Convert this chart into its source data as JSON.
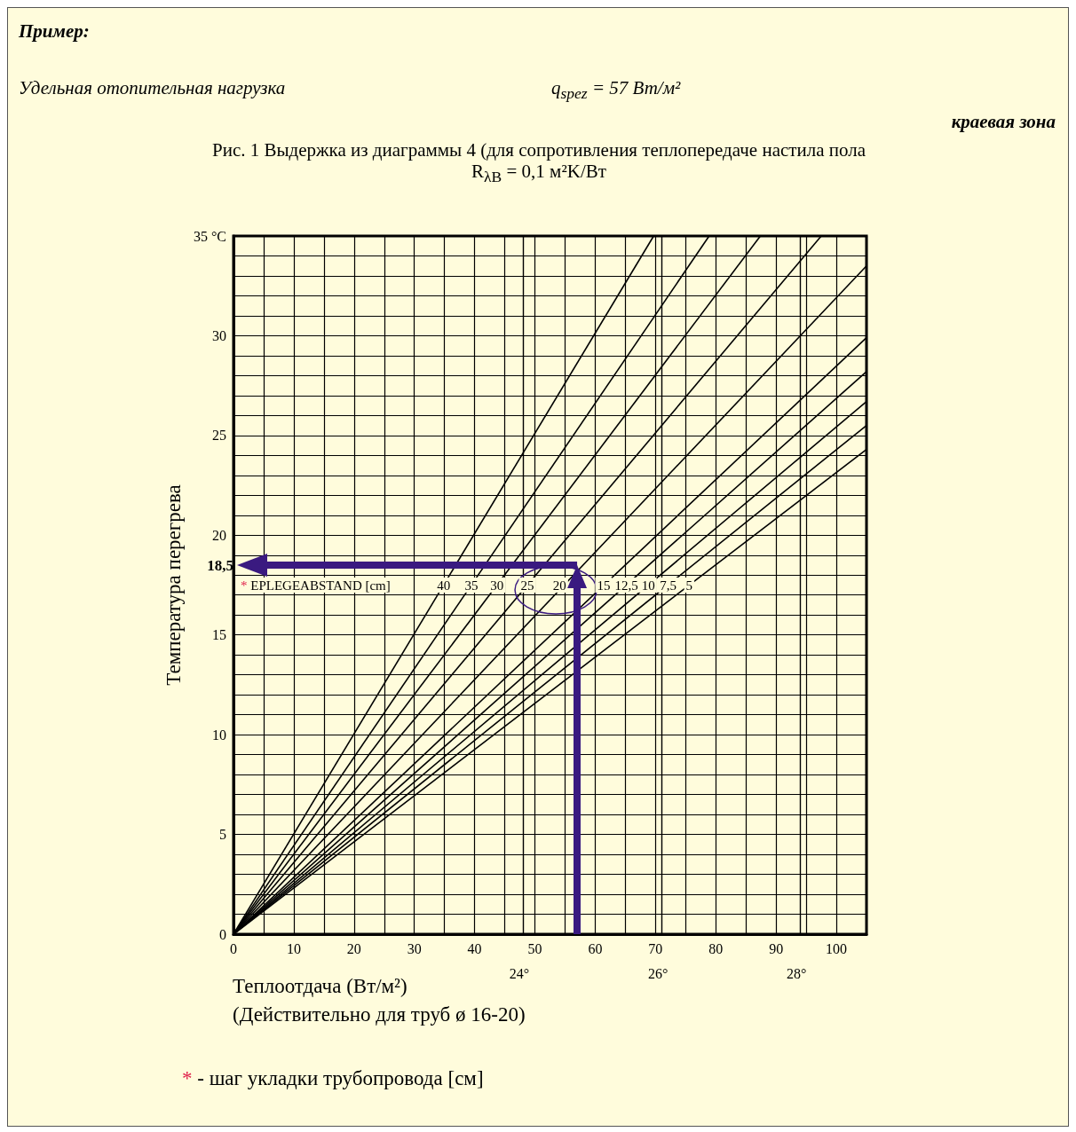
{
  "chart_data": {
    "type": "line",
    "title": "Рис. 1 Выдержка из диаграммы 4 (для сопротивления теплопередаче настила пола\nR$_{λB}$ = 0,1 м²K/Вт",
    "xlabel": "Теплоотдача (Вт/м²)",
    "ylabel": "Температура перегрева",
    "annotations": [
      "Пример:",
      "Удельная отопительная нагрузка",
      "q$_{spez}$ = 57 Вт/м²",
      "краевая зона",
      "(Действительно для труб ø 16-20)",
      "* - шаг укладки трубопровода [см]",
      "24°",
      "26°",
      "28°",
      "* EPLEGEABSTAND [cm]",
      {
        "text": "40",
        "x": 34.85,
        "y": 17.5
      },
      {
        "text": "35",
        "x": 39.45,
        "y": 17.5
      },
      {
        "text": "30",
        "x": 43.7,
        "y": 17.5
      },
      {
        "text": "25",
        "x": 48.75,
        "y": 17.5
      },
      {
        "text": "20",
        "x": 54.1,
        "y": 17.5
      },
      {
        "text": "15",
        "x": 61.4,
        "y": 17.5
      },
      {
        "text": "12,5",
        "x": 65.2,
        "y": 17.5
      },
      {
        "text": "10",
        "x": 68.8,
        "y": 17.5
      },
      {
        "text": "7,5",
        "x": 72.1,
        "y": 17.5
      },
      {
        "text": "5",
        "x": 75.6,
        "y": 17.5
      }
    ],
    "series": [
      {
        "color": "#000000",
        "x": [
          0,
          69.7
        ],
        "values": [
          0,
          35
        ]
      },
      {
        "color": "#000000",
        "x": [
          0,
          78.9
        ],
        "values": [
          0,
          35
        ]
      },
      {
        "color": "#000000",
        "x": [
          0,
          87.4
        ],
        "values": [
          0,
          35
        ]
      },
      {
        "color": "#000000",
        "x": [
          0,
          97.5
        ],
        "values": [
          0,
          35
        ]
      },
      {
        "color": "#000000",
        "x": [
          0,
          105
        ],
        "values": [
          0,
          33.5
        ]
      },
      {
        "color": "#000000",
        "x": [
          0,
          105
        ],
        "values": [
          0,
          29.9
        ]
      },
      {
        "color": "#000000",
        "x": [
          0,
          105
        ],
        "values": [
          0,
          28.2
        ]
      },
      {
        "color": "#000000",
        "x": [
          0,
          105
        ],
        "values": [
          0,
          26.7
        ]
      },
      {
        "color": "#000000",
        "x": [
          0,
          105
        ],
        "values": [
          0,
          25.5
        ]
      },
      {
        "color": "#000000",
        "x": [
          0,
          105
        ],
        "values": [
          0,
          24.3
        ]
      }
    ],
    "ref_lines": [
      {
        "axis": "x",
        "value": 48,
        "color": "#000000"
      },
      {
        "axis": "x",
        "value": 71,
        "color": "#000000"
      },
      {
        "axis": "x",
        "value": 94,
        "color": "#000000"
      },
      {
        "axis": "y",
        "value": 18.5,
        "label": "18,5",
        "color": "#3a1a80"
      },
      {
        "axis": "x",
        "value": 57,
        "color": "#3a1a80"
      }
    ],
    "xlim": [
      0,
      105
    ],
    "xticks": [
      0,
      {
        "value": 5,
        "label": null
      },
      10,
      {
        "value": 15,
        "label": null
      },
      20,
      {
        "value": 25,
        "label": null
      },
      30,
      {
        "value": 35,
        "label": null
      },
      40,
      {
        "value": 45,
        "label": null
      },
      50,
      {
        "value": 55,
        "label": null
      },
      60,
      {
        "value": 65,
        "label": null
      },
      70,
      {
        "value": 75,
        "label": null
      },
      80,
      {
        "value": 85,
        "label": null
      },
      90,
      {
        "value": 95,
        "label": null
      },
      100,
      {
        "value": 105,
        "label": null
      }
    ],
    "ylim": [
      0,
      35
    ],
    "yticks": [
      0,
      {
        "value": 1,
        "label": null
      },
      {
        "value": 2,
        "label": null
      },
      {
        "value": 3,
        "label": null
      },
      {
        "value": 4,
        "label": null
      },
      5,
      {
        "value": 6,
        "label": null
      },
      {
        "value": 7,
        "label": null
      },
      {
        "value": 8,
        "label": null
      },
      {
        "value": 9,
        "label": null
      },
      10,
      {
        "value": 11,
        "label": null
      },
      {
        "value": 12,
        "label": null
      },
      {
        "value": 13,
        "label": null
      },
      {
        "value": 14,
        "label": null
      },
      15,
      {
        "value": 16,
        "label": null
      },
      {
        "value": 17,
        "label": null
      },
      {
        "value": 18,
        "label": null
      },
      {
        "value": 19,
        "label": null
      },
      20,
      {
        "value": 21,
        "label": null
      },
      {
        "value": 22,
        "label": null
      },
      {
        "value": 23,
        "label": null
      },
      {
        "value": 24,
        "label": null
      },
      25,
      {
        "value": 26,
        "label": null
      },
      {
        "value": 27,
        "label": null
      },
      {
        "value": 28,
        "label": null
      },
      {
        "value": 29,
        "label": null
      },
      30,
      {
        "value": 31,
        "label": null
      },
      {
        "value": 32,
        "label": null
      },
      {
        "value": 33,
        "label": null
      },
      {
        "value": 34,
        "label": null
      },
      {
        "value": 35,
        "label": "35 °C"
      }
    ],
    "grid": true,
    "marker": "none",
    "line_style": "solid"
  }
}
